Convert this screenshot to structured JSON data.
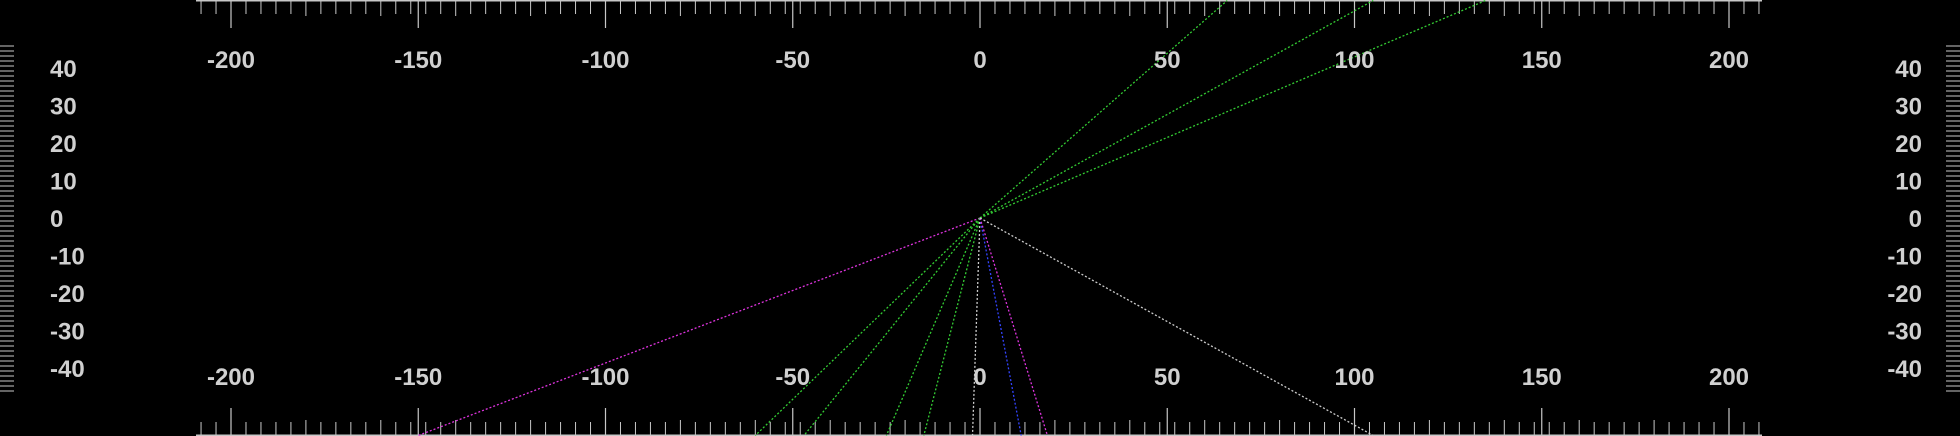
{
  "x_scale": {
    "labels": [
      "-200",
      "-150",
      "-100",
      "-50",
      "0",
      "50",
      "100",
      "150",
      "200"
    ],
    "values": [
      -200,
      -150,
      -100,
      -50,
      0,
      50,
      100,
      150,
      200
    ],
    "range": [
      -200,
      200
    ]
  },
  "y_scale": {
    "labels": [
      "40",
      "30",
      "20",
      "10",
      "0",
      "-10",
      "-20",
      "-30",
      "-40"
    ],
    "values": [
      40,
      30,
      20,
      10,
      0,
      -10,
      -20,
      -30,
      -40
    ],
    "range": [
      -40,
      40
    ]
  },
  "colors": {
    "background": "#000000",
    "text": "#d0d0d0",
    "tick": "#c8c8c8",
    "green": "#33cc33",
    "magenta": "#dd33dd",
    "blue": "#3344ff",
    "white": "#cccccc"
  },
  "rays": [
    {
      "color": "green",
      "end": [
        66,
        58
      ]
    },
    {
      "color": "green",
      "end": [
        105,
        58
      ]
    },
    {
      "color": "green",
      "end": [
        135,
        58
      ]
    },
    {
      "color": "magenta",
      "end": [
        -150,
        -58
      ]
    },
    {
      "color": "green",
      "end": [
        -60,
        -58
      ]
    },
    {
      "color": "green",
      "end": [
        -47,
        -58
      ]
    },
    {
      "color": "green",
      "end": [
        -25,
        -58
      ]
    },
    {
      "color": "green",
      "end": [
        -15,
        -58
      ]
    },
    {
      "color": "white",
      "end": [
        -2,
        -58
      ]
    },
    {
      "color": "blue",
      "end": [
        11,
        -58
      ]
    },
    {
      "color": "magenta",
      "end": [
        18,
        -58
      ]
    },
    {
      "color": "white",
      "end": [
        105,
        -58
      ]
    }
  ]
}
